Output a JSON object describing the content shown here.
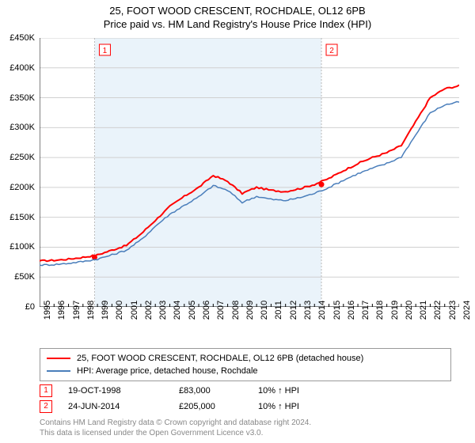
{
  "title_line1": "25, FOOT WOOD CRESCENT, ROCHDALE, OL12 6PB",
  "title_line2": "Price paid vs. HM Land Registry's House Price Index (HPI)",
  "chart": {
    "type": "line",
    "background_color": "#ffffff",
    "shaded_band_color": "#eaf3fa",
    "grid_color": "#d0d0d0",
    "axis_color": "#000000",
    "ylim": [
      0,
      450000
    ],
    "ytick_step": 50000,
    "y_ticks": [
      "£0",
      "£50K",
      "£100K",
      "£150K",
      "£200K",
      "£250K",
      "£300K",
      "£350K",
      "£400K",
      "£450K"
    ],
    "x_years": [
      1995,
      1996,
      1997,
      1998,
      1999,
      2000,
      2001,
      2002,
      2003,
      2004,
      2005,
      2006,
      2007,
      2008,
      2009,
      2010,
      2011,
      2012,
      2013,
      2014,
      2015,
      2016,
      2017,
      2018,
      2019,
      2020,
      2021,
      2022,
      2023,
      2024
    ],
    "label_fontsize": 11,
    "series": [
      {
        "name": "25, FOOT WOOD CRESCENT, ROCHDALE, OL12 6PB (detached house)",
        "color": "#ff0000",
        "line_width": 2,
        "values_by_year": [
          77000,
          78000,
          80000,
          83000,
          87000,
          95000,
          103000,
          122000,
          145000,
          168000,
          185000,
          200000,
          220000,
          210000,
          190000,
          200000,
          195000,
          193000,
          198000,
          205000,
          215000,
          228000,
          240000,
          250000,
          258000,
          270000,
          310000,
          350000,
          365000,
          370000
        ]
      },
      {
        "name": "HPI: Average price, detached house, Rochdale",
        "color": "#4a7ebb",
        "line_width": 1.5,
        "values_by_year": [
          70000,
          71000,
          73000,
          76000,
          80000,
          87000,
          95000,
          112000,
          135000,
          155000,
          170000,
          184000,
          203000,
          195000,
          175000,
          185000,
          180000,
          178000,
          183000,
          190000,
          200000,
          212000,
          223000,
          232000,
          240000,
          251000,
          288000,
          325000,
          338000,
          343000
        ]
      }
    ],
    "markers": [
      {
        "n": "1",
        "year": 1998.8,
        "value": 83000,
        "color": "#ff0000"
      },
      {
        "n": "2",
        "year": 2014.48,
        "value": 205000,
        "color": "#ff0000"
      }
    ],
    "marker_line_color": "#bbbbbb"
  },
  "legend": {
    "items": [
      {
        "color": "#ff0000",
        "label": "25, FOOT WOOD CRESCENT, ROCHDALE, OL12 6PB (detached house)"
      },
      {
        "color": "#4a7ebb",
        "label": "HPI: Average price, detached house, Rochdale"
      }
    ]
  },
  "sales": [
    {
      "n": "1",
      "date": "19-OCT-1998",
      "price": "£83,000",
      "pct": "10% ↑ HPI"
    },
    {
      "n": "2",
      "date": "24-JUN-2014",
      "price": "£205,000",
      "pct": "10% ↑ HPI"
    }
  ],
  "footer_line1": "Contains HM Land Registry data © Crown copyright and database right 2024.",
  "footer_line2": "This data is licensed under the Open Government Licence v3.0."
}
